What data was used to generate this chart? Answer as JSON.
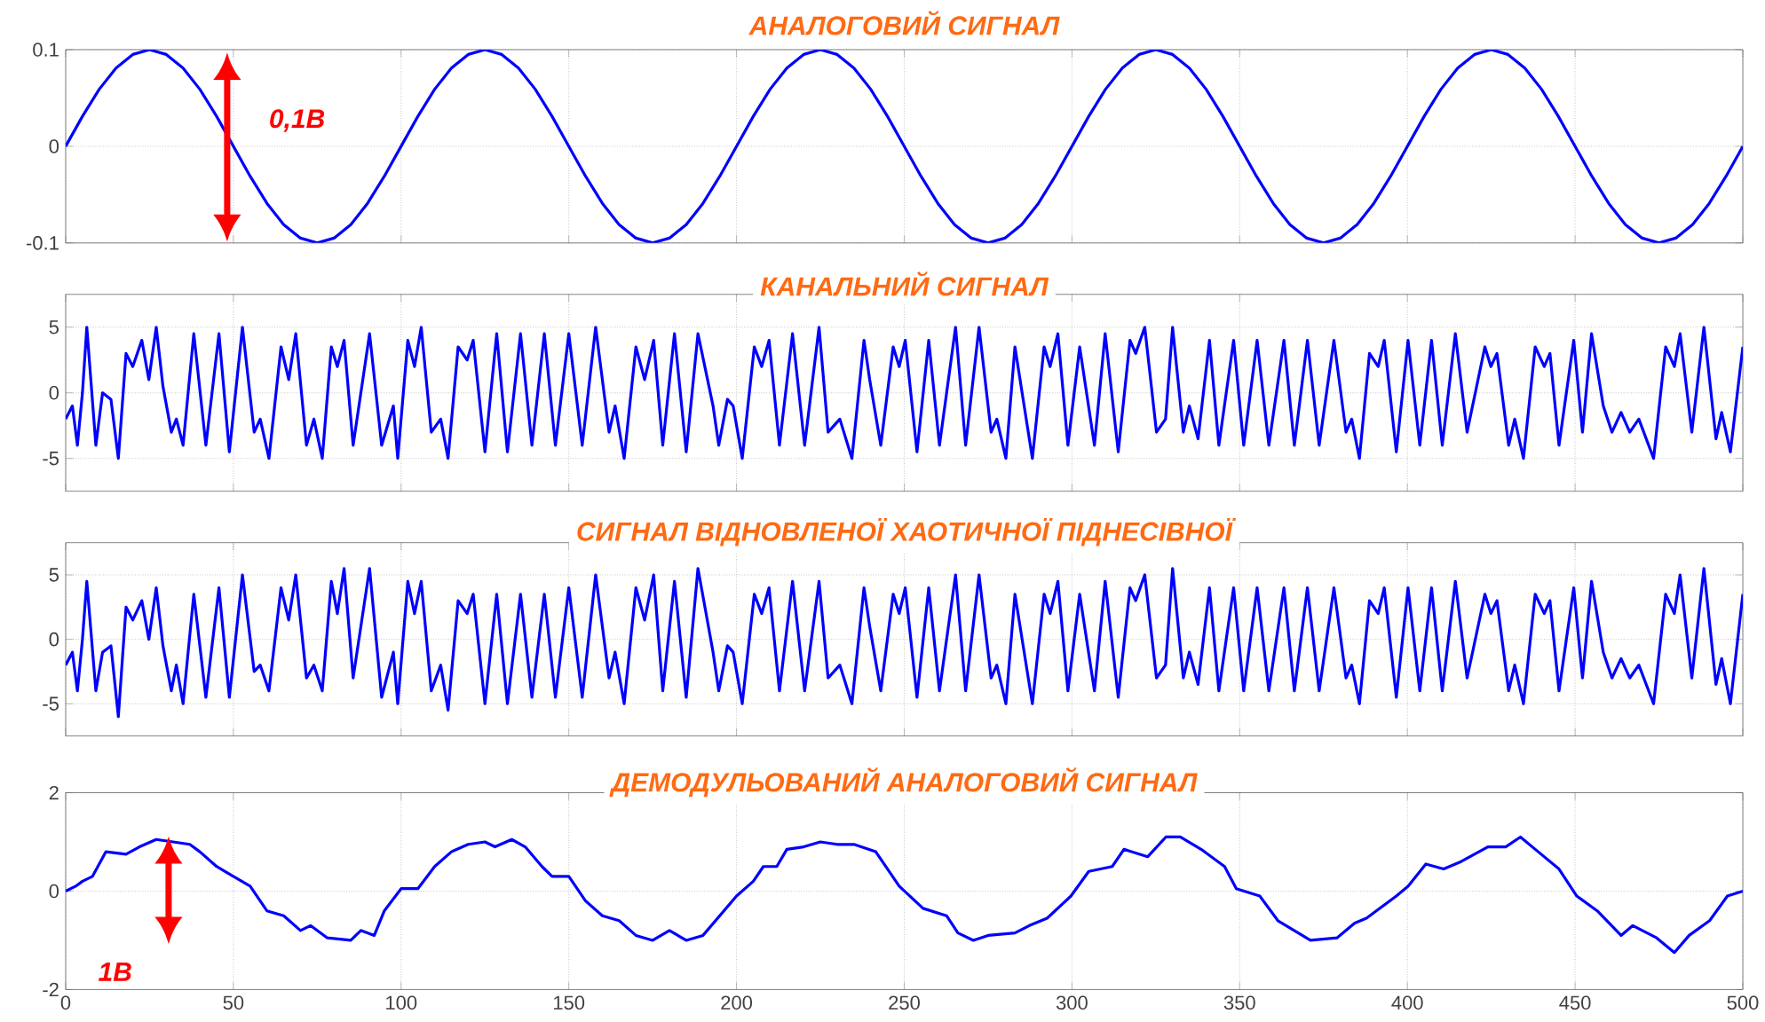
{
  "chart_data": [
    {
      "type": "line",
      "title": "АНАЛОГОВИЙ СИГНАЛ",
      "xlim": [
        0,
        500
      ],
      "ylim": [
        -0.1,
        0.1
      ],
      "xticks": [
        0,
        50,
        100,
        150,
        200,
        250,
        300,
        350,
        400,
        450,
        500
      ],
      "yticks": [
        -0.1,
        0,
        0.1
      ],
      "grid": true,
      "tick_labels": "y",
      "annotations": [
        "0,1В"
      ],
      "x": [
        0,
        5,
        10,
        15,
        20,
        25,
        30,
        35,
        40,
        45,
        50,
        55,
        60,
        65,
        70,
        75,
        80,
        85,
        90,
        95,
        100,
        105,
        110,
        115,
        120,
        125,
        130,
        135,
        140,
        145,
        150,
        155,
        160,
        165,
        170,
        175,
        180,
        185,
        190,
        195,
        200,
        205,
        210,
        215,
        220,
        225,
        230,
        235,
        240,
        245,
        250,
        255,
        260,
        265,
        270,
        275,
        280,
        285,
        290,
        295,
        300,
        305,
        310,
        315,
        320,
        325,
        330,
        335,
        340,
        345,
        350,
        355,
        360,
        365,
        370,
        375,
        380,
        385,
        390,
        395,
        400,
        405,
        410,
        415,
        420,
        425,
        430,
        435,
        440,
        445,
        450,
        455,
        460,
        465,
        470,
        475,
        480,
        485,
        490,
        495,
        500
      ],
      "series": [
        {
          "color": "#0000ff",
          "values": [
            0,
            0.031,
            0.059,
            0.081,
            0.095,
            0.1,
            0.095,
            0.081,
            0.059,
            0.031,
            0,
            -0.031,
            -0.059,
            -0.081,
            -0.095,
            -0.1,
            -0.095,
            -0.081,
            -0.059,
            -0.031,
            0,
            0.031,
            0.059,
            0.081,
            0.095,
            0.1,
            0.095,
            0.081,
            0.059,
            0.031,
            0,
            -0.031,
            -0.059,
            -0.081,
            -0.095,
            -0.1,
            -0.095,
            -0.081,
            -0.059,
            -0.031,
            0,
            0.031,
            0.059,
            0.081,
            0.095,
            0.1,
            0.095,
            0.081,
            0.059,
            0.031,
            0,
            -0.031,
            -0.059,
            -0.081,
            -0.095,
            -0.1,
            -0.095,
            -0.081,
            -0.059,
            -0.031,
            0,
            0.031,
            0.059,
            0.081,
            0.095,
            0.1,
            0.095,
            0.081,
            0.059,
            0.031,
            0,
            -0.031,
            -0.059,
            -0.081,
            -0.095,
            -0.1,
            -0.095,
            -0.081,
            -0.059,
            -0.031,
            0,
            0.031,
            0.059,
            0.081,
            0.095,
            0.1,
            0.095,
            0.081,
            0.059,
            0.031,
            0,
            -0.031,
            -0.059,
            -0.081,
            -0.095,
            -0.1,
            -0.095,
            -0.081,
            -0.059,
            -0.031,
            0
          ]
        }
      ]
    },
    {
      "type": "line",
      "title": "КАНАЛЬНИЙ СИГНАЛ",
      "xlim": [
        0,
        500
      ],
      "ylim": [
        -7.5,
        7.5
      ],
      "xticks": [
        0,
        50,
        100,
        150,
        200,
        250,
        300,
        350,
        400,
        450,
        500
      ],
      "yticks": [
        -5,
        0,
        5
      ],
      "grid": true,
      "tick_labels": "y",
      "x": [
        0,
        2,
        3.5,
        5,
        6.3,
        9,
        11,
        13.5,
        15.7,
        18,
        20,
        22.7,
        24.8,
        27,
        29,
        31.5,
        33,
        35,
        38.2,
        41.8,
        45.7,
        48.8,
        52.7,
        56.2,
        58,
        60.6,
        64.2,
        66.5,
        68.6,
        71.8,
        74,
        76.5,
        79.2,
        81,
        83,
        85.7,
        90.6,
        94.2,
        97.7,
        99,
        102,
        104,
        106,
        109,
        111.8,
        114,
        117,
        119.7,
        121.5,
        125,
        128.5,
        131.7,
        135.6,
        139,
        142.7,
        146,
        150,
        154,
        158,
        162,
        163.8,
        166.5,
        170,
        172.6,
        175.3,
        178,
        181.5,
        185,
        188.5,
        193,
        194.7,
        197.3,
        199,
        201.7,
        205.3,
        207.5,
        209.7,
        212.8,
        216.7,
        220.3,
        224.6,
        227.3,
        230.8,
        234.4,
        238,
        239.7,
        243,
        246.7,
        248.5,
        250.3,
        253.8,
        257.3,
        260.5,
        265.3,
        268.3,
        272.3,
        275.9,
        277.6,
        280.3,
        283,
        288.2,
        291.7,
        293.5,
        295.8,
        298.8,
        302.3,
        306.7,
        309.9,
        313.8,
        317.3,
        319,
        321.7,
        325.2,
        327.9,
        330,
        333.2,
        335,
        337.6,
        341,
        343.8,
        348.2,
        351.2,
        355.2,
        358.7,
        363.2,
        366.3,
        370.2,
        373.7,
        378.1,
        381.7,
        383.4,
        385.7,
        388.7,
        391.3,
        393.1,
        396.7,
        400.2,
        403.7,
        407.2,
        410.4,
        414.3,
        417.8,
        423.1,
        424.9,
        426.7,
        430.2,
        432,
        434.6,
        438.1,
        440.8,
        442.5,
        445.2,
        449.6,
        452.2,
        454.9,
        458.4,
        461,
        463.7,
        466.3,
        469,
        473.4,
        477,
        479.6,
        481.3,
        484.8,
        488.4,
        492,
        493.7,
        496.3,
        500
      ],
      "series": [
        {
          "color": "#0000ff",
          "values": [
            -2,
            -1,
            -4,
            0,
            5,
            -4,
            0,
            -0.5,
            -5,
            3,
            2,
            4,
            1,
            5,
            0.5,
            -3,
            -2,
            -4,
            4.5,
            -4,
            4.5,
            -4.5,
            5,
            -3,
            -2,
            -5,
            3.5,
            1,
            4.5,
            -4,
            -2,
            -5,
            3.5,
            2,
            4,
            -4,
            4.5,
            -4,
            -1,
            -5,
            4,
            2,
            5,
            -3,
            -2,
            -5,
            3.5,
            2.5,
            4,
            -4.5,
            4.5,
            -4.5,
            4.5,
            -4,
            4.5,
            -4,
            4.5,
            -4,
            5,
            -3,
            -1,
            -5,
            3.5,
            1,
            4,
            -4,
            4.5,
            -4.5,
            4.5,
            -1,
            -4,
            -0.5,
            -1,
            -5,
            3.5,
            2,
            4,
            -4,
            4.5,
            -4,
            5,
            -3,
            -2,
            -5,
            4,
            1,
            -4,
            3.5,
            2,
            4,
            -4.5,
            4,
            -4,
            5,
            -4,
            5,
            -3,
            -2,
            -5,
            3.5,
            -5,
            3.5,
            2,
            4.5,
            -4,
            3.5,
            -4,
            4.5,
            -4.5,
            4,
            3,
            5,
            -3,
            -2,
            5,
            -3,
            -1,
            -3.5,
            4,
            -4,
            4,
            -4,
            4,
            -4,
            4,
            -4,
            4,
            -4,
            4,
            -3,
            -2,
            -5,
            3,
            2,
            4,
            -4.5,
            4,
            -4,
            4,
            -4,
            4.5,
            -3,
            3.5,
            2,
            3,
            -4,
            -2,
            -5,
            3.5,
            2,
            3,
            -4,
            4,
            -3,
            4.5,
            -1,
            -3,
            -1.5,
            -3,
            -2,
            -5,
            3.5,
            2,
            4.5,
            -3,
            5,
            -3.5,
            -1.5,
            -4.5,
            3.5
          ]
        }
      ]
    },
    {
      "type": "line",
      "title": "СИГНАЛ ВІДНОВЛЕНОЇ ХАОТИЧНОЇ ПІДНЕСІВНОЇ",
      "xlim": [
        0,
        500
      ],
      "ylim": [
        -7.5,
        7.5
      ],
      "xticks": [
        0,
        50,
        100,
        150,
        200,
        250,
        300,
        350,
        400,
        450,
        500
      ],
      "yticks": [
        -5,
        0,
        5
      ],
      "grid": true,
      "tick_labels": "y",
      "x": [
        0,
        2,
        3.5,
        5,
        6.3,
        9,
        11,
        13.5,
        15.7,
        18,
        20,
        22.7,
        24.8,
        27,
        29,
        31.5,
        33,
        35,
        38.2,
        41.8,
        45.7,
        48.8,
        52.7,
        56.2,
        58,
        60.6,
        64.2,
        66.5,
        68.6,
        71.8,
        74,
        76.5,
        79.2,
        81,
        83,
        85.7,
        90.6,
        94.2,
        97.7,
        99,
        102,
        104,
        106,
        109,
        111.8,
        114,
        117,
        119.7,
        121.5,
        125,
        128.5,
        131.7,
        135.6,
        139,
        142.7,
        146,
        150,
        154,
        158,
        162,
        163.8,
        166.5,
        170,
        172.6,
        175.3,
        178,
        181.5,
        185,
        188.5,
        193,
        194.7,
        197.3,
        199,
        201.7,
        205.3,
        207.5,
        209.7,
        212.8,
        216.7,
        220.3,
        224.6,
        227.3,
        230.8,
        234.4,
        238,
        239.7,
        243,
        246.7,
        248.5,
        250.3,
        253.8,
        257.3,
        260.5,
        265.3,
        268.3,
        272.3,
        275.9,
        277.6,
        280.3,
        283,
        288.2,
        291.7,
        293.5,
        295.8,
        298.8,
        302.3,
        306.7,
        309.9,
        313.8,
        317.3,
        319,
        321.7,
        325.2,
        327.9,
        330,
        333.2,
        335,
        337.6,
        341,
        343.8,
        348.2,
        351.2,
        355.2,
        358.7,
        363.2,
        366.3,
        370.2,
        373.7,
        378.1,
        381.7,
        383.4,
        385.7,
        388.7,
        391.3,
        393.1,
        396.7,
        400.2,
        403.7,
        407.2,
        410.4,
        414.3,
        417.8,
        423.1,
        424.9,
        426.7,
        430.2,
        432,
        434.6,
        438.1,
        440.8,
        442.5,
        445.2,
        449.6,
        452.2,
        454.9,
        458.4,
        461,
        463.7,
        466.3,
        469,
        473.4,
        477,
        479.6,
        481.3,
        484.8,
        488.4,
        492,
        493.7,
        496.3,
        500
      ],
      "series": [
        {
          "color": "#0000ff",
          "values": [
            -2,
            -1,
            -4,
            0,
            4.5,
            -4,
            -1,
            -0.5,
            -6,
            2.5,
            1.5,
            3,
            0,
            4,
            -0.5,
            -4,
            -2,
            -5,
            3.5,
            -4.5,
            4,
            -4.5,
            5,
            -2.5,
            -2,
            -4,
            4,
            1.5,
            5,
            -3,
            -2,
            -4,
            4.5,
            2,
            5.5,
            -3,
            5.5,
            -4.5,
            -1,
            -5,
            4.5,
            2,
            4.5,
            -4,
            -2,
            -5.5,
            3,
            2,
            3.5,
            -5,
            3.5,
            -5,
            3.5,
            -4.5,
            3.5,
            -4.5,
            4,
            -4.5,
            5,
            -3,
            -1,
            -5,
            4,
            1.5,
            5,
            -4,
            4.5,
            -4.5,
            5.5,
            -1,
            -4,
            -0.5,
            -1,
            -5,
            3.5,
            2,
            4,
            -4,
            4.5,
            -4,
            4.5,
            -3,
            -2,
            -5,
            4,
            1,
            -4,
            3.5,
            2,
            4,
            -4.5,
            4,
            -4,
            5,
            -4,
            5,
            -3,
            -2,
            -5,
            3.5,
            -5,
            3.5,
            2,
            4.5,
            -4,
            3.5,
            -4,
            4.5,
            -4.5,
            4,
            3,
            5,
            -3,
            -2,
            5.5,
            -3,
            -1,
            -3.5,
            4,
            -4,
            4,
            -4,
            4,
            -4,
            4,
            -4,
            4,
            -4,
            4,
            -3,
            -2,
            -5,
            3,
            2,
            4,
            -4.5,
            4,
            -4,
            4,
            -4,
            4.5,
            -3,
            3.5,
            2,
            3,
            -4,
            -2,
            -5,
            3.5,
            2,
            3,
            -4,
            4,
            -3,
            4.5,
            -1,
            -3,
            -1.5,
            -3,
            -2,
            -5,
            3.5,
            2,
            5,
            -3,
            5.5,
            -3.5,
            -1.5,
            -5,
            3.5
          ]
        }
      ]
    },
    {
      "type": "line",
      "title": "ДЕМОДУЛЬОВАНИЙ АНАЛОГОВИЙ СИГНАЛ",
      "xlim": [
        0,
        500
      ],
      "ylim": [
        -2,
        2
      ],
      "xticks": [
        0,
        50,
        100,
        150,
        200,
        250,
        300,
        350,
        400,
        450,
        500
      ],
      "yticks": [
        -2,
        0,
        2
      ],
      "grid": true,
      "annotations": [
        "1В"
      ],
      "x": [
        0,
        3,
        5,
        8,
        12,
        18,
        22,
        27,
        32,
        37,
        40,
        45,
        50,
        55,
        60,
        65,
        70,
        73,
        78,
        85,
        88,
        92,
        95,
        100,
        105,
        110,
        115,
        120,
        125,
        128,
        133,
        137,
        142,
        145,
        150,
        155,
        160,
        165,
        170,
        175,
        180,
        185,
        190,
        195,
        200,
        205,
        208,
        212,
        215,
        220,
        225,
        230,
        235,
        241.5,
        243,
        248.5,
        255.6,
        262.6,
        266,
        270.6,
        275,
        283,
        287.3,
        292.6,
        299.7,
        305,
        312,
        315.5,
        322.6,
        328,
        332.3,
        338.5,
        345.5,
        349,
        356,
        361.4,
        371.1,
        379,
        384.3,
        387.8,
        396.7,
        400.2,
        405.5,
        410.8,
        416,
        424,
        429.3,
        433.7,
        439,
        445.2,
        450.5,
        456.6,
        463.7,
        467.2,
        474.3,
        479.6,
        484,
        490.1,
        495.4,
        500
      ],
      "series": [
        {
          "color": "#0000ff",
          "values": [
            0,
            0.1,
            0.2,
            0.3,
            0.8,
            0.75,
            0.9,
            1.05,
            1,
            0.95,
            0.8,
            0.5,
            0.3,
            0.1,
            -0.4,
            -0.5,
            -0.8,
            -0.7,
            -0.95,
            -1,
            -0.8,
            -0.9,
            -0.4,
            0.05,
            0.05,
            0.5,
            0.8,
            0.95,
            1,
            0.9,
            1.05,
            0.9,
            0.5,
            0.3,
            0.3,
            -0.2,
            -0.5,
            -0.6,
            -0.9,
            -1,
            -0.8,
            -1,
            -0.9,
            -0.5,
            -0.1,
            0.2,
            0.5,
            0.5,
            0.85,
            0.9,
            1,
            0.95,
            0.95,
            0.8,
            0.65,
            0.1,
            -0.35,
            -0.5,
            -0.85,
            -1,
            -0.9,
            -0.85,
            -0.7,
            -0.55,
            -0.1,
            0.4,
            0.5,
            0.85,
            0.7,
            1.1,
            1.1,
            0.85,
            0.5,
            0.05,
            -0.1,
            -0.6,
            -1,
            -0.95,
            -0.65,
            -0.55,
            -0.1,
            0.1,
            0.55,
            0.45,
            0.6,
            0.9,
            0.9,
            1.1,
            0.8,
            0.45,
            -0.1,
            -0.4,
            -0.9,
            -0.7,
            -0.95,
            -1.25,
            -0.9,
            -0.6,
            -0.1,
            0
          ]
        }
      ]
    }
  ]
}
